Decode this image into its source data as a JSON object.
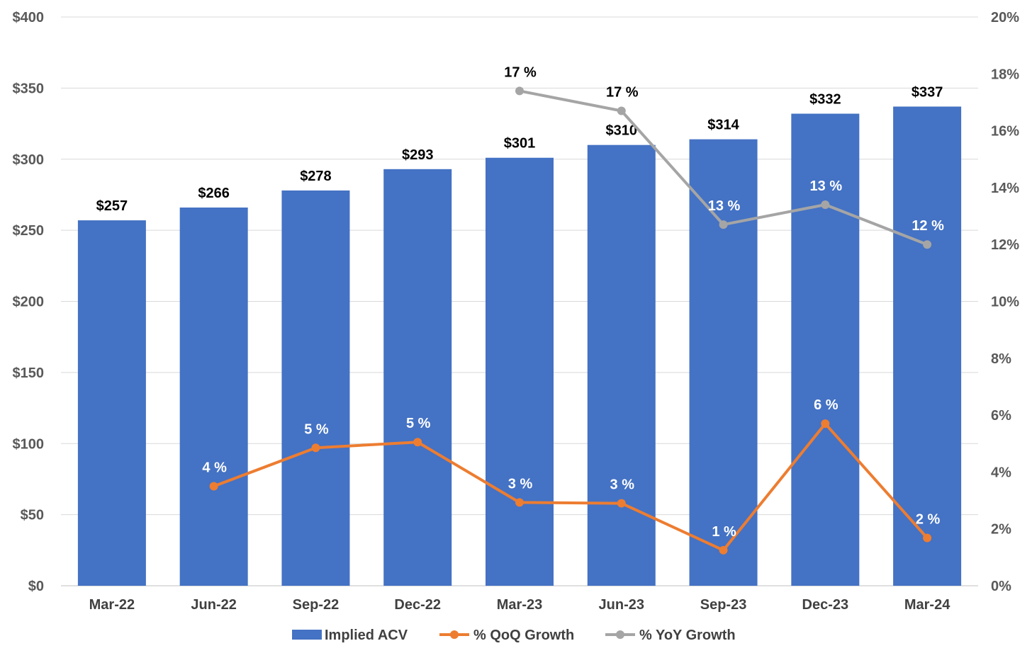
{
  "chart_data": {
    "type": "bar",
    "categories": [
      "Mar-22",
      "Jun-22",
      "Sep-22",
      "Dec-22",
      "Mar-23",
      "Jun-23",
      "Sep-23",
      "Dec-23",
      "Mar-24"
    ],
    "series": [
      {
        "name": "Implied ACV",
        "type": "bar",
        "axis": "left",
        "color": "#4472C4",
        "values": [
          257,
          266,
          278,
          293,
          301,
          310,
          314,
          332,
          337
        ],
        "labels": [
          "$257",
          "$266",
          "$278",
          "$293",
          "$301",
          "$310",
          "$314",
          "$332",
          "$337"
        ]
      },
      {
        "name": "% QoQ Growth",
        "type": "line",
        "axis": "right",
        "color": "#ED7D31",
        "values": [
          null,
          3.5,
          4.85,
          5.05,
          2.93,
          2.9,
          1.25,
          5.7,
          1.68
        ],
        "labels": [
          null,
          "4 %",
          "5 %",
          "5 %",
          "3 %",
          "3 %",
          "1 %",
          "6 %",
          "2 %"
        ]
      },
      {
        "name": "% YoY Growth",
        "type": "line",
        "axis": "right",
        "color": "#A5A5A5",
        "values": [
          null,
          null,
          null,
          null,
          17.4,
          16.7,
          12.7,
          13.4,
          12.0
        ],
        "labels": [
          null,
          null,
          null,
          null,
          "17 %",
          "17 %",
          "13 %",
          "13 %",
          "12 %"
        ]
      }
    ],
    "y_left": {
      "ylim": [
        0,
        400
      ],
      "ticks": [
        0,
        50,
        100,
        150,
        200,
        250,
        300,
        350,
        400
      ],
      "tick_labels": [
        "$0",
        "$50",
        "$100",
        "$150",
        "$200",
        "$250",
        "$300",
        "$350",
        "$400"
      ]
    },
    "y_right": {
      "ylim": [
        0,
        20
      ],
      "ticks": [
        0,
        2,
        4,
        6,
        8,
        10,
        12,
        14,
        16,
        18,
        20
      ],
      "tick_labels": [
        "0%",
        "2%",
        "4%",
        "6%",
        "8%",
        "10%",
        "12%",
        "14%",
        "16%",
        "18%",
        "20%"
      ]
    },
    "grid": "horizontal",
    "legend": "bottom-center",
    "gridline_color": "#D9D9D9"
  }
}
